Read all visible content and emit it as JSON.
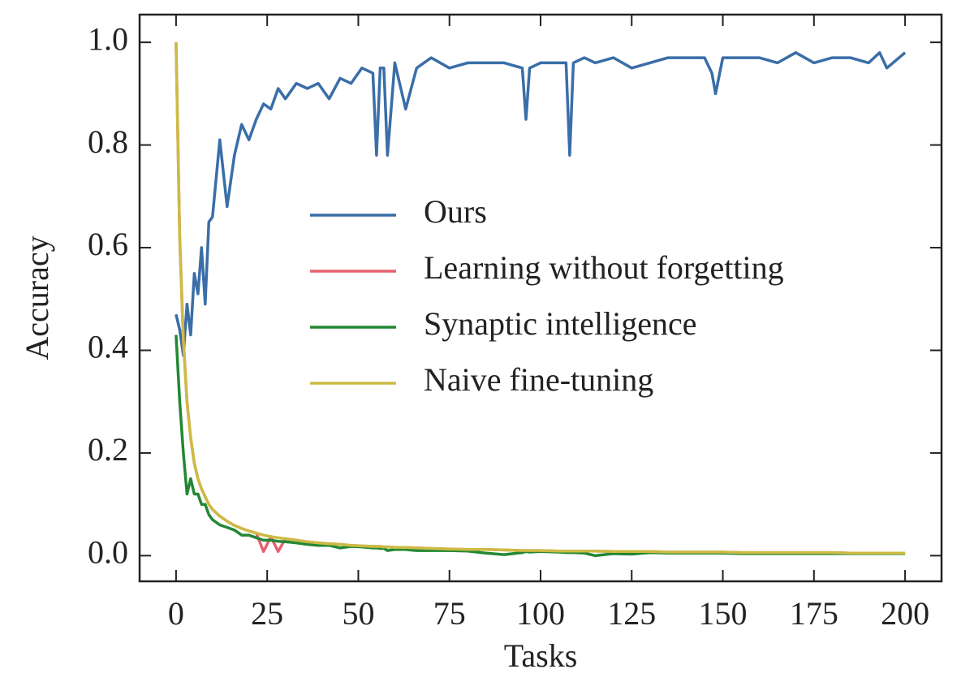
{
  "chart_data": {
    "type": "line",
    "xlabel": "Tasks",
    "ylabel": "Accuracy",
    "x": [
      0,
      1,
      2,
      3,
      4,
      5,
      6,
      7,
      8,
      9,
      10,
      12,
      14,
      16,
      18,
      20,
      22,
      24,
      26,
      28,
      30,
      33,
      36,
      39,
      42,
      45,
      48,
      51,
      54,
      55,
      56,
      57,
      58,
      60,
      63,
      66,
      70,
      75,
      80,
      85,
      90,
      95,
      96,
      97,
      100,
      105,
      107,
      108,
      109,
      112,
      115,
      120,
      125,
      130,
      135,
      140,
      145,
      147,
      148,
      150,
      155,
      160,
      165,
      170,
      175,
      180,
      185,
      190,
      193,
      195,
      200
    ],
    "series": [
      {
        "name": "Ours",
        "color": "#3a6ea8",
        "values": [
          0.47,
          0.44,
          0.39,
          0.49,
          0.43,
          0.55,
          0.51,
          0.6,
          0.49,
          0.65,
          0.66,
          0.81,
          0.68,
          0.78,
          0.84,
          0.81,
          0.85,
          0.88,
          0.87,
          0.91,
          0.89,
          0.92,
          0.91,
          0.92,
          0.89,
          0.93,
          0.92,
          0.95,
          0.94,
          0.78,
          0.95,
          0.95,
          0.78,
          0.96,
          0.87,
          0.95,
          0.97,
          0.95,
          0.96,
          0.96,
          0.96,
          0.95,
          0.85,
          0.95,
          0.96,
          0.96,
          0.96,
          0.78,
          0.96,
          0.97,
          0.96,
          0.97,
          0.95,
          0.96,
          0.97,
          0.97,
          0.97,
          0.94,
          0.9,
          0.97,
          0.97,
          0.97,
          0.96,
          0.98,
          0.96,
          0.97,
          0.97,
          0.96,
          0.98,
          0.95,
          0.98
        ]
      },
      {
        "name": "Learning without forgetting",
        "color": "#e8616e",
        "values": [
          1.0,
          0.62,
          0.42,
          0.3,
          0.23,
          0.18,
          0.15,
          0.13,
          0.115,
          0.1,
          0.09,
          0.077,
          0.067,
          0.059,
          0.053,
          0.048,
          0.044,
          0.008,
          0.037,
          0.008,
          0.033,
          0.03,
          0.027,
          0.025,
          0.023,
          0.022,
          0.02,
          0.019,
          0.018,
          0.018,
          0.018,
          0.017,
          0.017,
          0.016,
          0.016,
          0.015,
          0.014,
          0.013,
          0.012,
          0.012,
          0.011,
          0.01,
          0.01,
          0.01,
          0.01,
          0.009,
          0.009,
          0.009,
          0.009,
          0.009,
          0.009,
          0.008,
          0.008,
          0.008,
          0.007,
          0.007,
          0.007,
          0.007,
          0.007,
          0.007,
          0.006,
          0.006,
          0.006,
          0.006,
          0.006,
          0.006,
          0.005,
          0.005,
          0.005,
          0.005,
          0.005
        ]
      },
      {
        "name": "Synaptic intelligence",
        "color": "#228833",
        "values": [
          0.43,
          0.3,
          0.2,
          0.12,
          0.15,
          0.12,
          0.12,
          0.1,
          0.1,
          0.08,
          0.07,
          0.06,
          0.055,
          0.05,
          0.04,
          0.04,
          0.035,
          0.03,
          0.03,
          0.028,
          0.027,
          0.025,
          0.022,
          0.02,
          0.02,
          0.015,
          0.018,
          0.017,
          0.015,
          0.015,
          0.014,
          0.014,
          0.01,
          0.012,
          0.012,
          0.01,
          0.01,
          0.01,
          0.009,
          0.005,
          0.002,
          0.006,
          0.008,
          0.007,
          0.008,
          0.007,
          0.006,
          0.006,
          0.006,
          0.005,
          0.0,
          0.004,
          0.003,
          0.006,
          0.005,
          0.005,
          0.005,
          0.005,
          0.005,
          0.005,
          0.004,
          0.004,
          0.004,
          0.004,
          0.004,
          0.004,
          0.004,
          0.004,
          0.004,
          0.004,
          0.004
        ]
      },
      {
        "name": "Naive fine-tuning",
        "color": "#ccbb44",
        "values": [
          1.0,
          0.62,
          0.42,
          0.3,
          0.23,
          0.18,
          0.15,
          0.13,
          0.115,
          0.1,
          0.09,
          0.077,
          0.067,
          0.059,
          0.053,
          0.048,
          0.044,
          0.04,
          0.037,
          0.035,
          0.033,
          0.03,
          0.027,
          0.025,
          0.023,
          0.022,
          0.02,
          0.019,
          0.018,
          0.018,
          0.018,
          0.017,
          0.017,
          0.016,
          0.016,
          0.015,
          0.014,
          0.013,
          0.012,
          0.012,
          0.011,
          0.01,
          0.01,
          0.01,
          0.01,
          0.009,
          0.009,
          0.009,
          0.009,
          0.009,
          0.009,
          0.008,
          0.008,
          0.008,
          0.007,
          0.007,
          0.007,
          0.007,
          0.007,
          0.007,
          0.006,
          0.006,
          0.006,
          0.006,
          0.006,
          0.006,
          0.005,
          0.005,
          0.005,
          0.005,
          0.005
        ]
      }
    ],
    "xlim": [
      -10,
      210
    ],
    "ylim": [
      -0.05,
      1.054
    ],
    "xticks": [
      0,
      25,
      50,
      75,
      100,
      125,
      150,
      175,
      200
    ],
    "yticks": [
      {
        "value": 0,
        "label": "0.0"
      },
      0.2,
      0.4,
      0.6,
      0.8,
      {
        "value": 1,
        "label": "1.0"
      }
    ],
    "legend": "right"
  }
}
